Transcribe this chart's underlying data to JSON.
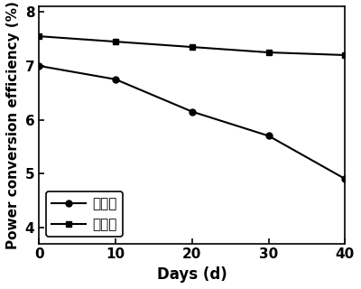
{
  "series": [
    {
      "label": "交联前",
      "x": [
        0,
        10,
        20,
        30,
        40
      ],
      "y": [
        7.0,
        6.75,
        6.15,
        5.7,
        4.9
      ],
      "marker": "o",
      "linestyle": "-",
      "color": "#000000",
      "markersize": 5,
      "markerfacecolor": "#000000"
    },
    {
      "label": "交联后",
      "x": [
        0,
        10,
        20,
        30,
        40
      ],
      "y": [
        7.55,
        7.45,
        7.35,
        7.25,
        7.2
      ],
      "marker": "s",
      "linestyle": "-",
      "color": "#000000",
      "markersize": 5,
      "markerfacecolor": "#000000"
    }
  ],
  "xlabel": "Days (d)",
  "ylabel": "Power conversion efficiency (%)",
  "xlim": [
    0,
    40
  ],
  "ylim": [
    3.7,
    8.1
  ],
  "yticks": [
    4,
    5,
    6,
    7,
    8
  ],
  "xticks": [
    0,
    10,
    20,
    30,
    40
  ],
  "legend_loc": "lower left",
  "linewidth": 1.5,
  "xlabel_fontsize": 12,
  "ylabel_fontsize": 11,
  "tick_fontsize": 11,
  "legend_fontsize": 11,
  "background_color": "#ffffff"
}
